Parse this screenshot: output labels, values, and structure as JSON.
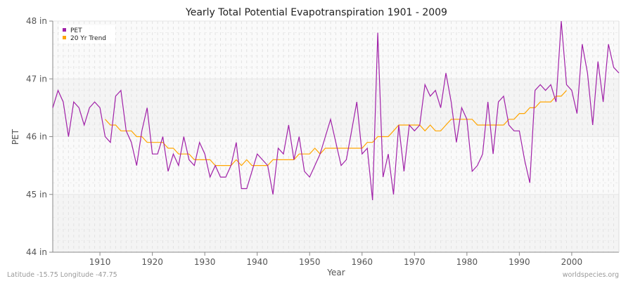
{
  "chart_data": {
    "type": "line",
    "title": "Yearly Total Potential Evapotranspiration 1901 - 2009",
    "xlabel": "Year",
    "ylabel": "PET",
    "xlim": [
      1901,
      2009
    ],
    "ylim": [
      44,
      48
    ],
    "x_ticks": [
      1910,
      1920,
      1930,
      1940,
      1950,
      1960,
      1970,
      1980,
      1990,
      2000
    ],
    "y_ticks": [
      44,
      45,
      46,
      47,
      48
    ],
    "y_tick_labels": [
      "44 in",
      "45 in",
      "46 in",
      "47 in",
      "48 in"
    ],
    "grid": true,
    "legend_position": "top-left",
    "series": [
      {
        "name": "PET",
        "color": "#a020a8",
        "x_start": 1901,
        "values": [
          46.5,
          46.8,
          46.6,
          46.0,
          46.6,
          46.5,
          46.2,
          46.5,
          46.6,
          46.5,
          46.0,
          45.9,
          46.7,
          46.8,
          46.1,
          45.9,
          45.5,
          46.1,
          46.5,
          45.7,
          45.7,
          46.0,
          45.4,
          45.7,
          45.5,
          46.0,
          45.6,
          45.5,
          45.9,
          45.7,
          45.3,
          45.5,
          45.3,
          45.3,
          45.5,
          45.9,
          45.1,
          45.1,
          45.4,
          45.7,
          45.6,
          45.5,
          45.0,
          45.8,
          45.7,
          46.2,
          45.6,
          46.0,
          45.4,
          45.3,
          45.5,
          45.7,
          46.0,
          46.3,
          45.9,
          45.5,
          45.6,
          46.1,
          46.6,
          45.7,
          45.8,
          44.9,
          47.8,
          45.3,
          45.7,
          45.0,
          46.2,
          45.4,
          46.2,
          46.1,
          46.2,
          46.9,
          46.7,
          46.8,
          46.5,
          47.1,
          46.6,
          45.9,
          46.5,
          46.3,
          45.4,
          45.5,
          45.7,
          46.6,
          45.7,
          46.6,
          46.7,
          46.2,
          46.1,
          46.1,
          45.6,
          45.2,
          46.8,
          46.9,
          46.8,
          46.9,
          46.6,
          48.0,
          46.9,
          46.8,
          46.4,
          47.6,
          47.1,
          46.2,
          47.3,
          46.6,
          47.6,
          47.2,
          47.1
        ]
      },
      {
        "name": "20 Yr Trend",
        "color": "#ffa500",
        "x_start": 1911,
        "values": [
          46.3,
          46.2,
          46.2,
          46.1,
          46.1,
          46.1,
          46.0,
          46.0,
          45.9,
          45.9,
          45.9,
          45.9,
          45.8,
          45.8,
          45.7,
          45.7,
          45.7,
          45.6,
          45.6,
          45.6,
          45.6,
          45.5,
          45.5,
          45.5,
          45.5,
          45.6,
          45.5,
          45.6,
          45.5,
          45.5,
          45.5,
          45.5,
          45.6,
          45.6,
          45.6,
          45.6,
          45.6,
          45.7,
          45.7,
          45.7,
          45.8,
          45.7,
          45.8,
          45.8,
          45.8,
          45.8,
          45.8,
          45.8,
          45.8,
          45.8,
          45.9,
          45.9,
          46.0,
          46.0,
          46.0,
          46.1,
          46.2,
          46.2,
          46.2,
          46.2,
          46.2,
          46.1,
          46.2,
          46.1,
          46.1,
          46.2,
          46.3,
          46.3,
          46.3,
          46.3,
          46.3,
          46.2,
          46.2,
          46.2,
          46.2,
          46.2,
          46.2,
          46.3,
          46.3,
          46.4,
          46.4,
          46.5,
          46.5,
          46.6,
          46.6,
          46.6,
          46.7,
          46.7,
          46.8
        ]
      }
    ]
  },
  "footer": {
    "location": "Latitude -15.75 Longitude -47.75",
    "source": "worldspecies.org"
  }
}
